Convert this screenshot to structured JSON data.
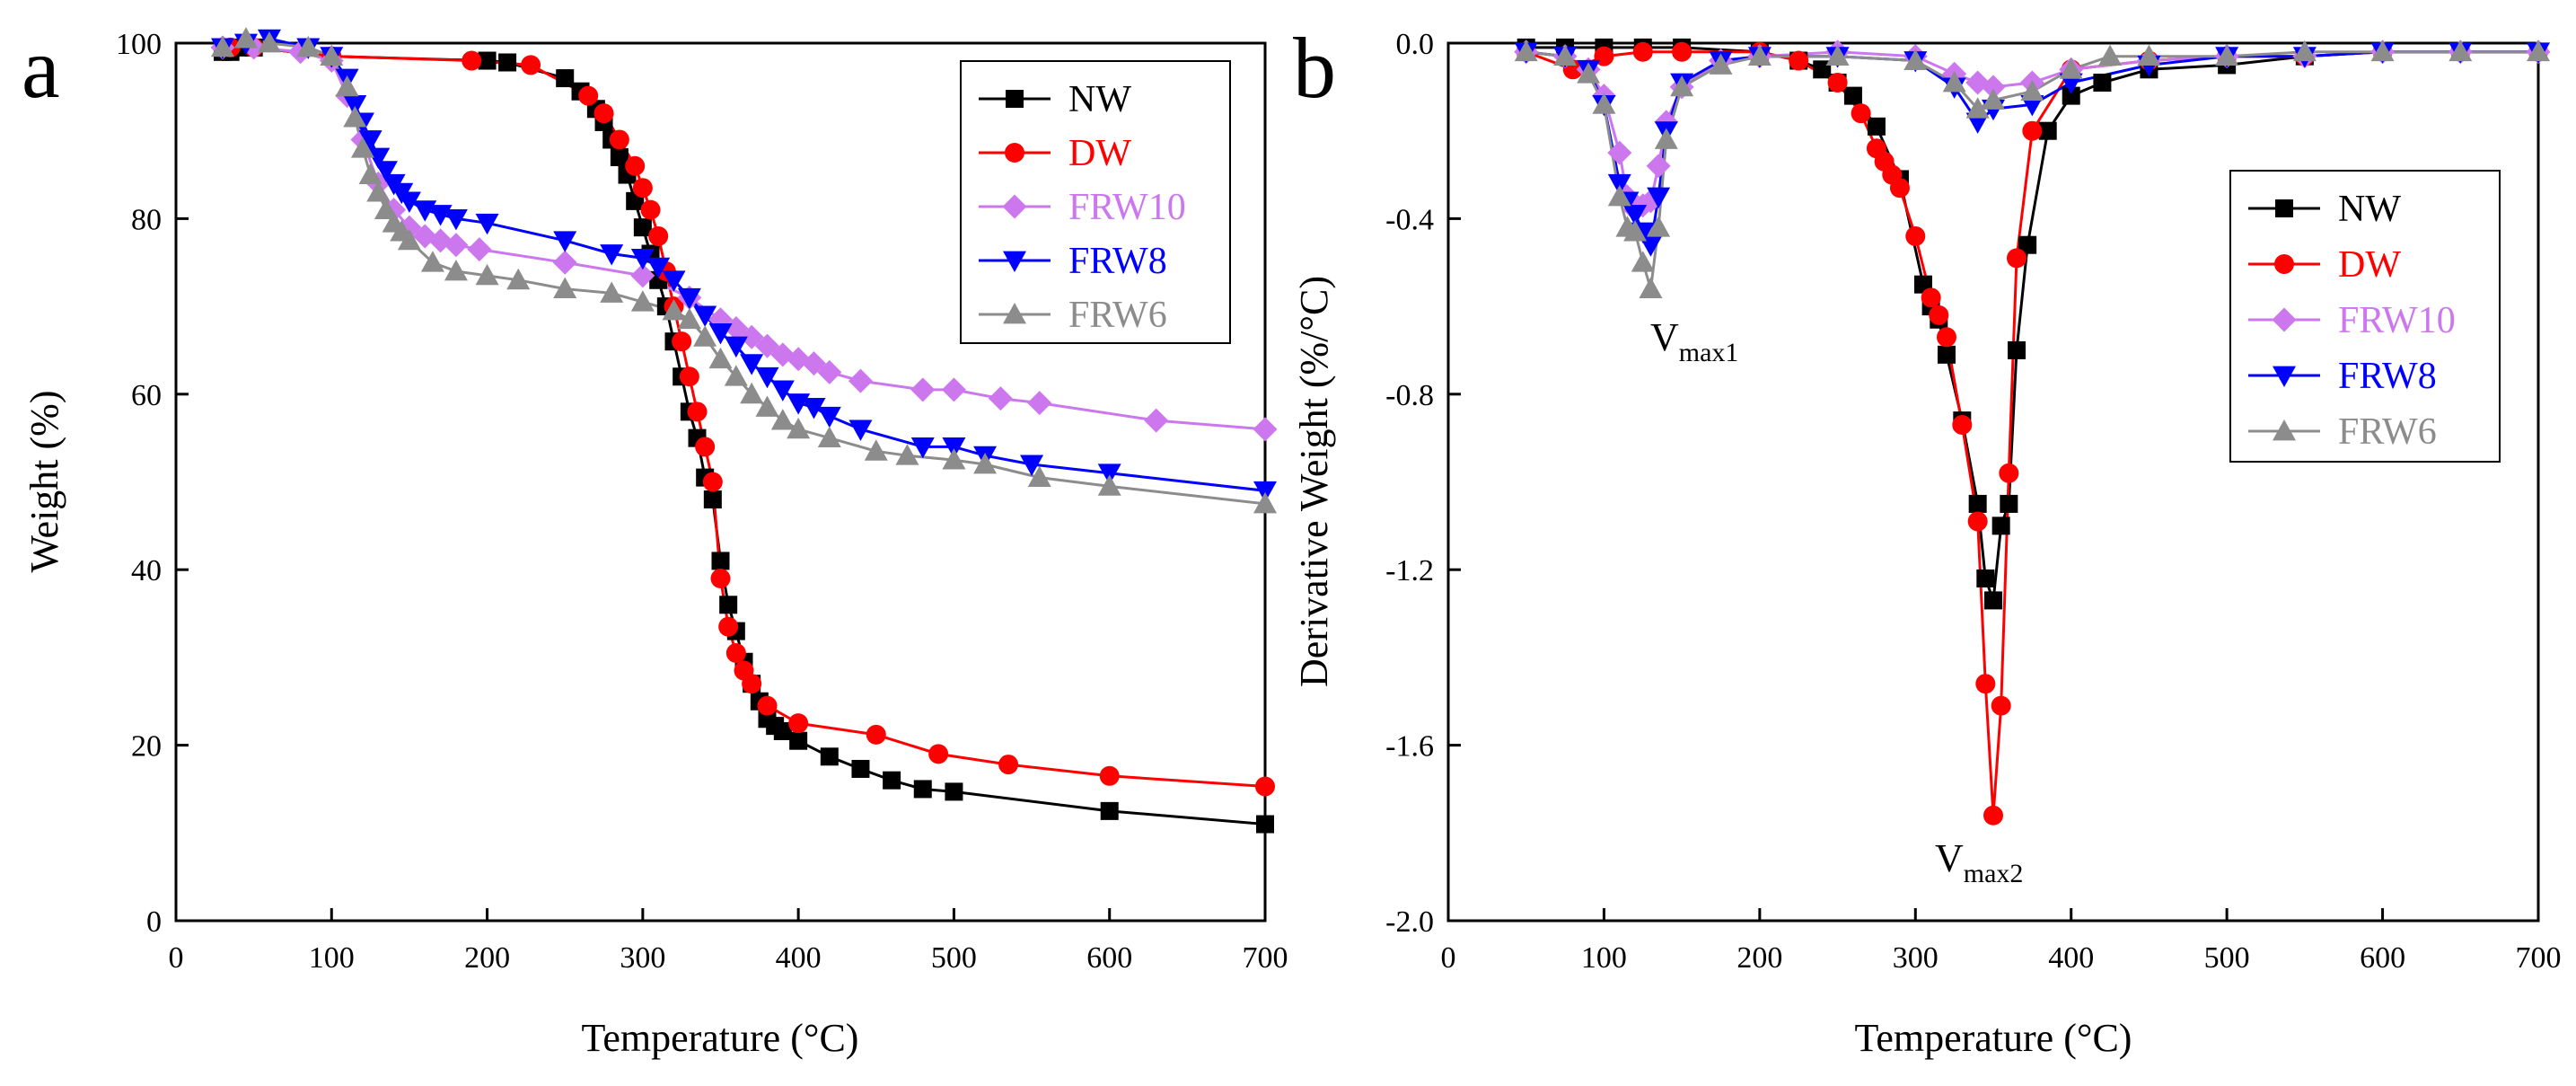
{
  "chart_data": [
    {
      "panel_label": "a",
      "type": "line",
      "xlabel": "Temperature (°C)",
      "ylabel": "Weight (%)",
      "xlim": [
        0,
        700
      ],
      "ylim": [
        0,
        100
      ],
      "xticks": [
        0,
        100,
        200,
        300,
        400,
        500,
        600,
        700
      ],
      "yticks": [
        0,
        20,
        40,
        60,
        80,
        100
      ],
      "legend_position": "top-right",
      "series": [
        {
          "name": "NW",
          "color": "#000000",
          "marker": "square",
          "x": [
            30,
            35,
            40,
            50,
            100,
            200,
            213,
            250,
            260,
            270,
            275,
            280,
            285,
            290,
            295,
            300,
            305,
            310,
            315,
            320,
            325,
            330,
            335,
            340,
            345,
            350,
            355,
            360,
            365,
            370,
            375,
            380,
            385,
            390,
            400,
            420,
            440,
            460,
            480,
            500,
            600,
            700
          ],
          "y": [
            99,
            99,
            99.5,
            99.5,
            98.5,
            98,
            97.8,
            96,
            94.5,
            92.5,
            91,
            89,
            87,
            85,
            82,
            79,
            76,
            73,
            70,
            66,
            62,
            58,
            55,
            50.5,
            48,
            41,
            36,
            33,
            29.5,
            27,
            25,
            23,
            22.2,
            21.6,
            20.5,
            18.7,
            17.3,
            16,
            15,
            14.7,
            12.5,
            11
          ]
        },
        {
          "name": "DW",
          "color": "#ff0000",
          "marker": "circle",
          "x": [
            35,
            50,
            100,
            190,
            228,
            265,
            275,
            285,
            295,
            300,
            305,
            310,
            315,
            320,
            325,
            330,
            335,
            340,
            345,
            350,
            355,
            360,
            365,
            370,
            380,
            400,
            450,
            490,
            535,
            600,
            700
          ],
          "y": [
            99.5,
            99.5,
            98.5,
            98,
            97.5,
            94,
            92,
            89,
            86,
            83.5,
            81,
            78,
            74,
            70,
            66,
            62,
            58,
            54,
            50,
            39,
            33.5,
            30.5,
            28.5,
            27,
            24.5,
            22.5,
            21.2,
            19,
            17.8,
            16.5,
            15.3
          ]
        },
        {
          "name": "FRW10",
          "color": "#cc77ee",
          "marker": "diamond",
          "x": [
            30,
            50,
            80,
            100,
            110,
            120,
            130,
            140,
            150,
            160,
            170,
            180,
            195,
            250,
            300,
            330,
            350,
            360,
            370,
            380,
            390,
            400,
            410,
            420,
            440,
            480,
            500,
            530,
            555,
            630,
            700
          ],
          "y": [
            99.5,
            99.5,
            99,
            98,
            94,
            89,
            84,
            81,
            79,
            78,
            77.5,
            77,
            76.5,
            75,
            73.5,
            71,
            68.5,
            67.5,
            66.5,
            65.5,
            64.5,
            64,
            63.5,
            62.5,
            61.5,
            60.5,
            60.5,
            59.5,
            59,
            57,
            56
          ]
        },
        {
          "name": "FRW8",
          "color": "#0000ff",
          "marker": "triangle-down",
          "x": [
            30,
            45,
            60,
            85,
            100,
            110,
            115,
            120,
            125,
            130,
            135,
            140,
            145,
            150,
            160,
            170,
            180,
            200,
            250,
            280,
            300,
            310,
            320,
            330,
            340,
            350,
            360,
            370,
            380,
            390,
            400,
            410,
            420,
            440,
            480,
            500,
            520,
            550,
            600,
            700
          ],
          "y": [
            99.5,
            100,
            100.5,
            99.5,
            98.5,
            96,
            93,
            91,
            89,
            87,
            85.5,
            84,
            83,
            82,
            81,
            80.5,
            80,
            79.5,
            77.5,
            76,
            75.5,
            74.5,
            73,
            71,
            69,
            67,
            65.5,
            63.5,
            62,
            60.5,
            59,
            58.5,
            57.5,
            56,
            54,
            54,
            53,
            52,
            51,
            49
          ]
        },
        {
          "name": "FRW6",
          "color": "#8c8c8c",
          "marker": "triangle-up",
          "x": [
            30,
            45,
            60,
            85,
            100,
            110,
            115,
            120,
            125,
            130,
            135,
            140,
            145,
            150,
            165,
            180,
            200,
            220,
            250,
            280,
            300,
            320,
            330,
            340,
            350,
            360,
            370,
            380,
            390,
            400,
            420,
            450,
            470,
            500,
            520,
            555,
            600,
            700
          ],
          "y": [
            99.5,
            100.5,
            100,
            99.5,
            98.5,
            95,
            91.5,
            88,
            85,
            83,
            81,
            79.5,
            78.5,
            77.5,
            75,
            74,
            73.5,
            73,
            72,
            71.5,
            70.5,
            69.5,
            68.5,
            66.5,
            64,
            62,
            60,
            58.5,
            57,
            56,
            55,
            53.5,
            53,
            52.5,
            52,
            50.5,
            49.5,
            47.5
          ]
        }
      ]
    },
    {
      "panel_label": "b",
      "type": "line",
      "xlabel": "Temperature (°C)",
      "ylabel": "Derivative Weight (%/°C)",
      "xlim": [
        0,
        700
      ],
      "ylim": [
        -2.0,
        0.0
      ],
      "xticks": [
        0,
        100,
        200,
        300,
        400,
        500,
        600,
        700
      ],
      "yticks": [
        -2.0,
        -1.6,
        -1.2,
        -0.8,
        -0.4,
        0.0
      ],
      "legend_position": "right",
      "annotations": [
        {
          "main": "V",
          "sub": "max1",
          "at_x": 120,
          "at_y": -0.7
        },
        {
          "main": "V",
          "sub": "max2",
          "at_x": 345,
          "at_y": -1.91
        }
      ],
      "series": [
        {
          "name": "NW",
          "color": "#000000",
          "marker": "square",
          "x": [
            50,
            75,
            100,
            125,
            150,
            200,
            225,
            240,
            250,
            260,
            275,
            290,
            305,
            310,
            315,
            320,
            330,
            340,
            345,
            350,
            355,
            360,
            365,
            372,
            385,
            400,
            420,
            450,
            500,
            550,
            600,
            650,
            700
          ],
          "y": [
            -0.01,
            -0.01,
            -0.01,
            -0.01,
            -0.01,
            -0.02,
            -0.04,
            -0.06,
            -0.09,
            -0.12,
            -0.19,
            -0.31,
            -0.55,
            -0.6,
            -0.63,
            -0.71,
            -0.86,
            -1.05,
            -1.22,
            -1.27,
            -1.1,
            -1.05,
            -0.7,
            -0.46,
            -0.2,
            -0.12,
            -0.09,
            -0.06,
            -0.05,
            -0.03,
            -0.02,
            -0.02,
            -0.02
          ]
        },
        {
          "name": "DW",
          "color": "#ff0000",
          "marker": "circle",
          "x": [
            50,
            80,
            100,
            125,
            150,
            200,
            225,
            250,
            265,
            275,
            280,
            285,
            290,
            300,
            310,
            315,
            320,
            330,
            340,
            345,
            350,
            355,
            360,
            365,
            375,
            400,
            450,
            500,
            550,
            600,
            650,
            700
          ],
          "y": [
            -0.02,
            -0.06,
            -0.03,
            -0.02,
            -0.02,
            -0.02,
            -0.04,
            -0.09,
            -0.16,
            -0.24,
            -0.27,
            -0.3,
            -0.33,
            -0.44,
            -0.58,
            -0.62,
            -0.67,
            -0.87,
            -1.09,
            -1.46,
            -1.76,
            -1.51,
            -0.98,
            -0.49,
            -0.2,
            -0.06,
            -0.04,
            -0.03,
            -0.03,
            -0.02,
            -0.02,
            -0.02
          ]
        },
        {
          "name": "FRW10",
          "color": "#cc77ee",
          "marker": "diamond",
          "x": [
            50,
            75,
            90,
            100,
            110,
            115,
            120,
            125,
            130,
            135,
            140,
            150,
            175,
            200,
            250,
            300,
            325,
            340,
            350,
            375,
            400,
            450,
            500,
            550,
            600,
            650,
            700
          ],
          "y": [
            -0.02,
            -0.03,
            -0.06,
            -0.12,
            -0.25,
            -0.35,
            -0.38,
            -0.37,
            -0.36,
            -0.28,
            -0.18,
            -0.1,
            -0.04,
            -0.03,
            -0.02,
            -0.03,
            -0.07,
            -0.09,
            -0.1,
            -0.09,
            -0.06,
            -0.04,
            -0.03,
            -0.03,
            -0.02,
            -0.02,
            -0.02
          ]
        },
        {
          "name": "FRW8",
          "color": "#0000ff",
          "marker": "triangle-down",
          "x": [
            50,
            75,
            90,
            100,
            110,
            115,
            120,
            125,
            130,
            135,
            140,
            150,
            175,
            200,
            250,
            300,
            325,
            340,
            350,
            375,
            400,
            450,
            500,
            550,
            600,
            650,
            700
          ],
          "y": [
            -0.02,
            -0.03,
            -0.06,
            -0.14,
            -0.32,
            -0.36,
            -0.39,
            -0.43,
            -0.46,
            -0.35,
            -0.2,
            -0.09,
            -0.04,
            -0.03,
            -0.03,
            -0.04,
            -0.1,
            -0.18,
            -0.15,
            -0.14,
            -0.09,
            -0.05,
            -0.03,
            -0.03,
            -0.02,
            -0.02,
            -0.02
          ]
        },
        {
          "name": "FRW6",
          "color": "#8c8c8c",
          "marker": "triangle-up",
          "x": [
            50,
            75,
            90,
            100,
            110,
            115,
            120,
            125,
            130,
            135,
            140,
            150,
            175,
            200,
            250,
            300,
            325,
            340,
            350,
            375,
            400,
            425,
            450,
            500,
            550,
            600,
            650,
            700
          ],
          "y": [
            -0.02,
            -0.03,
            -0.07,
            -0.14,
            -0.35,
            -0.42,
            -0.43,
            -0.5,
            -0.56,
            -0.42,
            -0.22,
            -0.1,
            -0.05,
            -0.03,
            -0.03,
            -0.04,
            -0.09,
            -0.15,
            -0.13,
            -0.11,
            -0.06,
            -0.03,
            -0.03,
            -0.03,
            -0.02,
            -0.02,
            -0.02,
            -0.02
          ]
        }
      ]
    }
  ]
}
